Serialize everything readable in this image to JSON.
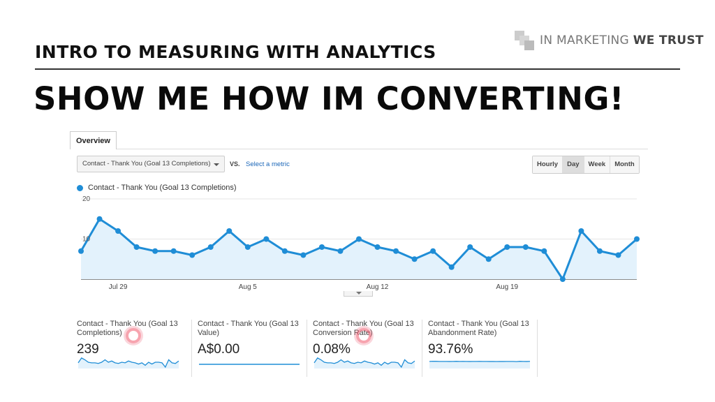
{
  "slide": {
    "logo": {
      "text_light": "IN MARKETING",
      "text_bold": "WE TRUST"
    },
    "subtitle": "INTRO TO MEASURING WITH ANALYTICS",
    "title": "SHOW ME HOW IM CONVERTING!"
  },
  "analytics": {
    "tab": "Overview",
    "metric_dropdown": "Contact - Thank You (Goal 13 Completions)",
    "vs_label": "VS.",
    "select_metric_link": "Select a metric",
    "granularity": [
      "Hourly",
      "Day",
      "Week",
      "Month"
    ],
    "granularity_selected": "Day",
    "accent_color": "#1f8dd6",
    "cards": [
      {
        "label": "Contact - Thank You (Goal 13 Completions)",
        "value": "239",
        "highlighted": true
      },
      {
        "label": "Contact - Thank You (Goal 13 Value)",
        "value": "A$0.00",
        "highlighted": false
      },
      {
        "label": "Contact - Thank You (Goal 13 Conversion Rate)",
        "value": "0.08%",
        "highlighted": true
      },
      {
        "label": "Contact - Thank You (Goal 13 Abandonment Rate)",
        "value": "93.76%",
        "highlighted": false
      }
    ]
  },
  "chart_data": {
    "type": "area",
    "legend": "Contact - Thank You (Goal 13 Completions)",
    "legend_placement": "top-left",
    "x_start": "Jul 27",
    "x_end": "Aug 26",
    "x_ticks": [
      {
        "label": "Jul 29",
        "index": 2
      },
      {
        "label": "Aug 5",
        "index": 9
      },
      {
        "label": "Aug 12",
        "index": 16
      },
      {
        "label": "Aug 19",
        "index": 23
      }
    ],
    "y_ticks": [
      "10",
      "20"
    ],
    "ylim": [
      0,
      20
    ],
    "grid": true,
    "values": [
      7,
      15,
      12,
      8,
      7,
      7,
      6,
      8,
      12,
      8,
      10,
      7,
      6,
      8,
      7,
      10,
      8,
      7,
      5,
      7,
      3,
      8,
      5,
      8,
      8,
      7,
      0,
      12,
      7,
      6,
      10
    ]
  }
}
